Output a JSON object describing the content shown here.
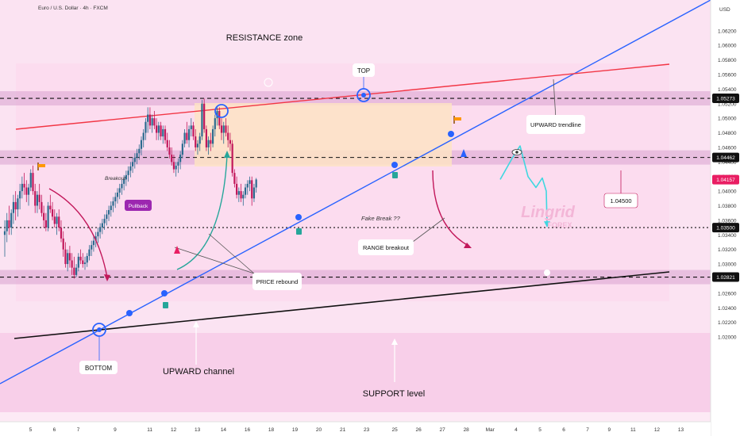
{
  "header": {
    "symbol_title": "Euro / U.S. Dollar · 4h · FXCM",
    "currency": "USD"
  },
  "annotations": {
    "resistance_zone": "RESISTANCE zone",
    "top": "TOP",
    "bottom": "BOTTOM",
    "upward_trendline": "UPWARD trendline",
    "breakout": "Breakout",
    "pullback": "Pullback",
    "fake_break": "Fake Break ??",
    "range_breakout": "RANGE breakout",
    "price_rebound": "PRICE rebound",
    "upward_channel": "UPWARD channel",
    "support_level": "SUPPORT level",
    "target_level": "1.04500",
    "watermark_main": "Lingrid",
    "watermark_sub": "FOREX"
  },
  "colors": {
    "background_pink": "#fbe3f2",
    "band": "#d9a3cf",
    "range_box": "#fde3c4",
    "bull": "#2b6b8f",
    "bear": "#c2185b",
    "blue_line": "#2962ff",
    "red_line": "#f23645",
    "accent_cyan": "#3fd7e0",
    "price_tag": "#e91e63"
  },
  "chart_data": {
    "type": "candlestick",
    "instrument": "EUR/USD",
    "timeframe": "4h",
    "y_axis": {
      "min": 1.01,
      "max": 1.066,
      "ticks": [
        1.062,
        1.06,
        1.058,
        1.056,
        1.054,
        1.052,
        1.05,
        1.048,
        1.046,
        1.044,
        1.042,
        1.04,
        1.038,
        1.036,
        1.034,
        1.032,
        1.03,
        1.028,
        1.026,
        1.024,
        1.022,
        1.02
      ],
      "tick_labels": [
        "1.06200",
        "1.06000",
        "1.05800",
        "1.05600",
        "1.05400",
        "1.05200",
        "1.05000",
        "1.04800",
        "1.04600",
        "1.04400",
        "1.04200",
        "1.04000",
        "1.03800",
        "1.03600",
        "1.03400",
        "1.03200",
        "1.03000",
        "1.02800",
        "1.02600",
        "1.02400",
        "1.02200",
        "1.02000"
      ]
    },
    "x_axis": {
      "labels": [
        "5",
        "6",
        "7",
        "9",
        "11",
        "12",
        "13",
        "14",
        "16",
        "18",
        "19",
        "20",
        "21",
        "23",
        "25",
        "26",
        "27",
        "28",
        "Mar",
        "4",
        "5",
        "6",
        "7",
        "9",
        "11",
        "12",
        "13"
      ],
      "label_index": [
        2,
        13,
        24,
        41,
        57,
        68,
        79,
        91,
        102,
        113,
        124,
        135,
        146,
        157,
        170,
        181,
        192,
        203,
        214,
        226,
        237,
        248,
        259,
        269,
        280,
        291,
        302
      ]
    },
    "levels": [
      {
        "label": "1.05273",
        "value": 1.05273,
        "style": "dashed"
      },
      {
        "label": "1.04462",
        "value": 1.04462,
        "style": "dashed"
      },
      {
        "label": "1.03500",
        "value": 1.035,
        "style": "dotted"
      },
      {
        "label": "1.02821",
        "value": 1.02821,
        "style": "dashed"
      }
    ],
    "current_price": {
      "label": "1.04157",
      "value": 1.04157
    },
    "candles": [
      [
        1.034,
        1.036,
        1.031,
        1.0345
      ],
      [
        1.0345,
        1.037,
        1.033,
        1.036
      ],
      [
        1.036,
        1.038,
        1.034,
        1.035
      ],
      [
        1.035,
        1.0375,
        1.034,
        1.037
      ],
      [
        1.037,
        1.0395,
        1.0355,
        1.0385
      ],
      [
        1.0385,
        1.04,
        1.036,
        1.0375
      ],
      [
        1.0375,
        1.0395,
        1.0365,
        1.039
      ],
      [
        1.039,
        1.041,
        1.0375,
        1.04
      ],
      [
        1.04,
        1.042,
        1.039,
        1.041
      ],
      [
        1.041,
        1.0425,
        1.0395,
        1.0405
      ],
      [
        1.0405,
        1.0415,
        1.0385,
        1.0395
      ],
      [
        1.0395,
        1.041,
        1.038,
        1.0405
      ],
      [
        1.0405,
        1.043,
        1.04,
        1.0425
      ],
      [
        1.0425,
        1.0435,
        1.0395,
        1.04
      ],
      [
        1.04,
        1.041,
        1.037,
        1.038
      ],
      [
        1.038,
        1.04,
        1.037,
        1.0395
      ],
      [
        1.0395,
        1.041,
        1.0375,
        1.0385
      ],
      [
        1.0385,
        1.0395,
        1.0365,
        1.037
      ],
      [
        1.037,
        1.038,
        1.035,
        1.036
      ],
      [
        1.036,
        1.037,
        1.0345,
        1.035
      ],
      [
        1.035,
        1.0385,
        1.0345,
        1.038
      ],
      [
        1.038,
        1.0395,
        1.037,
        1.0375
      ],
      [
        1.0375,
        1.0385,
        1.036,
        1.0365
      ],
      [
        1.0365,
        1.0375,
        1.035,
        1.0355
      ],
      [
        1.0355,
        1.037,
        1.034,
        1.0365
      ],
      [
        1.0365,
        1.0375,
        1.0345,
        1.035
      ],
      [
        1.035,
        1.036,
        1.033,
        1.0335
      ],
      [
        1.0335,
        1.0345,
        1.031,
        1.032
      ],
      [
        1.032,
        1.033,
        1.0295,
        1.03
      ],
      [
        1.03,
        1.032,
        1.029,
        1.0315
      ],
      [
        1.0315,
        1.0325,
        1.0295,
        1.0305
      ],
      [
        1.0305,
        1.0315,
        1.0285,
        1.0295
      ],
      [
        1.0295,
        1.031,
        1.028,
        1.0285
      ],
      [
        1.0285,
        1.03,
        1.0282,
        1.0295
      ],
      [
        1.0295,
        1.0315,
        1.029,
        1.031
      ],
      [
        1.031,
        1.032,
        1.03,
        1.0305
      ],
      [
        1.0305,
        1.0315,
        1.0295,
        1.03
      ],
      [
        1.03,
        1.031,
        1.0292,
        1.0302
      ],
      [
        1.0302,
        1.0315,
        1.0296,
        1.0311
      ],
      [
        1.0311,
        1.0326,
        1.0305,
        1.032
      ],
      [
        1.032,
        1.0332,
        1.0311,
        1.0326
      ],
      [
        1.0326,
        1.0338,
        1.0317,
        1.0332
      ],
      [
        1.0332,
        1.0344,
        1.0323,
        1.0338
      ],
      [
        1.0338,
        1.035,
        1.0329,
        1.0344
      ],
      [
        1.0344,
        1.0356,
        1.0335,
        1.035
      ],
      [
        1.035,
        1.0362,
        1.0341,
        1.0356
      ],
      [
        1.0356,
        1.0368,
        1.0347,
        1.0362
      ],
      [
        1.0362,
        1.0374,
        1.0353,
        1.0368
      ],
      [
        1.0368,
        1.038,
        1.0359,
        1.0374
      ],
      [
        1.0374,
        1.0386,
        1.0365,
        1.038
      ],
      [
        1.038,
        1.0392,
        1.0371,
        1.0386
      ],
      [
        1.0386,
        1.0398,
        1.0377,
        1.0392
      ],
      [
        1.0392,
        1.0404,
        1.0383,
        1.0398
      ],
      [
        1.0398,
        1.041,
        1.0389,
        1.0404
      ],
      [
        1.0404,
        1.0416,
        1.0395,
        1.041
      ],
      [
        1.041,
        1.0422,
        1.0401,
        1.0416
      ],
      [
        1.0416,
        1.0428,
        1.0407,
        1.0422
      ],
      [
        1.0422,
        1.0434,
        1.0413,
        1.0428
      ],
      [
        1.0428,
        1.044,
        1.0419,
        1.0434
      ],
      [
        1.0434,
        1.0446,
        1.0425,
        1.044
      ],
      [
        1.044,
        1.0452,
        1.0431,
        1.0446
      ],
      [
        1.0446,
        1.0458,
        1.0437,
        1.0452
      ],
      [
        1.0452,
        1.0464,
        1.0443,
        1.0458
      ],
      [
        1.0458,
        1.0475,
        1.0449,
        1.047
      ],
      [
        1.047,
        1.0485,
        1.046,
        1.048
      ],
      [
        1.048,
        1.05,
        1.047,
        1.0495
      ],
      [
        1.0495,
        1.0515,
        1.048,
        1.0505
      ],
      [
        1.0505,
        1.0515,
        1.0485,
        1.049
      ],
      [
        1.049,
        1.0505,
        1.048,
        1.05
      ],
      [
        1.05,
        1.051,
        1.0485,
        1.049
      ],
      [
        1.049,
        1.05,
        1.047,
        1.048
      ],
      [
        1.048,
        1.0495,
        1.047,
        1.049
      ],
      [
        1.049,
        1.0495,
        1.047,
        1.0475
      ],
      [
        1.0475,
        1.049,
        1.0465,
        1.0485
      ],
      [
        1.0485,
        1.049,
        1.0465,
        1.047
      ],
      [
        1.047,
        1.048,
        1.0455,
        1.046
      ],
      [
        1.046,
        1.047,
        1.0445,
        1.045
      ],
      [
        1.045,
        1.046,
        1.0435,
        1.044
      ],
      [
        1.044,
        1.045,
        1.0425,
        1.043
      ],
      [
        1.043,
        1.044,
        1.042,
        1.0435
      ],
      [
        1.0435,
        1.0445,
        1.0425,
        1.044
      ],
      [
        1.044,
        1.0455,
        1.043,
        1.045
      ],
      [
        1.045,
        1.047,
        1.0445,
        1.0465
      ],
      [
        1.0465,
        1.0485,
        1.046,
        1.048
      ],
      [
        1.048,
        1.0495,
        1.0465,
        1.047
      ],
      [
        1.047,
        1.049,
        1.046,
        1.0485
      ],
      [
        1.0485,
        1.05,
        1.0475,
        1.049
      ],
      [
        1.049,
        1.0495,
        1.047,
        1.0475
      ],
      [
        1.0475,
        1.0485,
        1.0455,
        1.046
      ],
      [
        1.046,
        1.047,
        1.045,
        1.0465
      ],
      [
        1.0465,
        1.048,
        1.0455,
        1.0475
      ],
      [
        1.0475,
        1.0525,
        1.047,
        1.052
      ],
      [
        1.052,
        1.0527,
        1.048,
        1.0485
      ],
      [
        1.0485,
        1.049,
        1.0455,
        1.046
      ],
      [
        1.046,
        1.0475,
        1.045,
        1.047
      ],
      [
        1.047,
        1.048,
        1.0455,
        1.0465
      ],
      [
        1.0465,
        1.049,
        1.046,
        1.0485
      ],
      [
        1.0485,
        1.0505,
        1.0475,
        1.05
      ],
      [
        1.05,
        1.0515,
        1.049,
        1.051
      ],
      [
        1.051,
        1.0515,
        1.0485,
        1.049
      ],
      [
        1.049,
        1.05,
        1.047,
        1.048
      ],
      [
        1.048,
        1.0495,
        1.0465,
        1.049
      ],
      [
        1.049,
        1.05,
        1.0475,
        1.048
      ],
      [
        1.048,
        1.049,
        1.046,
        1.047
      ],
      [
        1.047,
        1.048,
        1.0455,
        1.0465
      ],
      [
        1.0465,
        1.047,
        1.042,
        1.0425
      ],
      [
        1.0425,
        1.043,
        1.0405,
        1.041
      ],
      [
        1.041,
        1.042,
        1.039,
        1.0395
      ],
      [
        1.0395,
        1.0405,
        1.0385,
        1.04
      ],
      [
        1.04,
        1.041,
        1.0385,
        1.039
      ],
      [
        1.039,
        1.04,
        1.038,
        1.0395
      ],
      [
        1.0395,
        1.041,
        1.039,
        1.0405
      ],
      [
        1.0405,
        1.0415,
        1.0395,
        1.041
      ],
      [
        1.041,
        1.042,
        1.04,
        1.0415
      ],
      [
        1.0415,
        1.042,
        1.038,
        1.039
      ],
      [
        1.039,
        1.041,
        1.0385,
        1.0405
      ],
      [
        1.0405,
        1.0418,
        1.0398,
        1.0416
      ]
    ],
    "projection": {
      "description_points_values": [
        1.0416,
        1.0445,
        1.0462,
        1.042,
        1.0405,
        1.0418,
        1.04,
        1.0355
      ],
      "target": 1.035
    }
  }
}
